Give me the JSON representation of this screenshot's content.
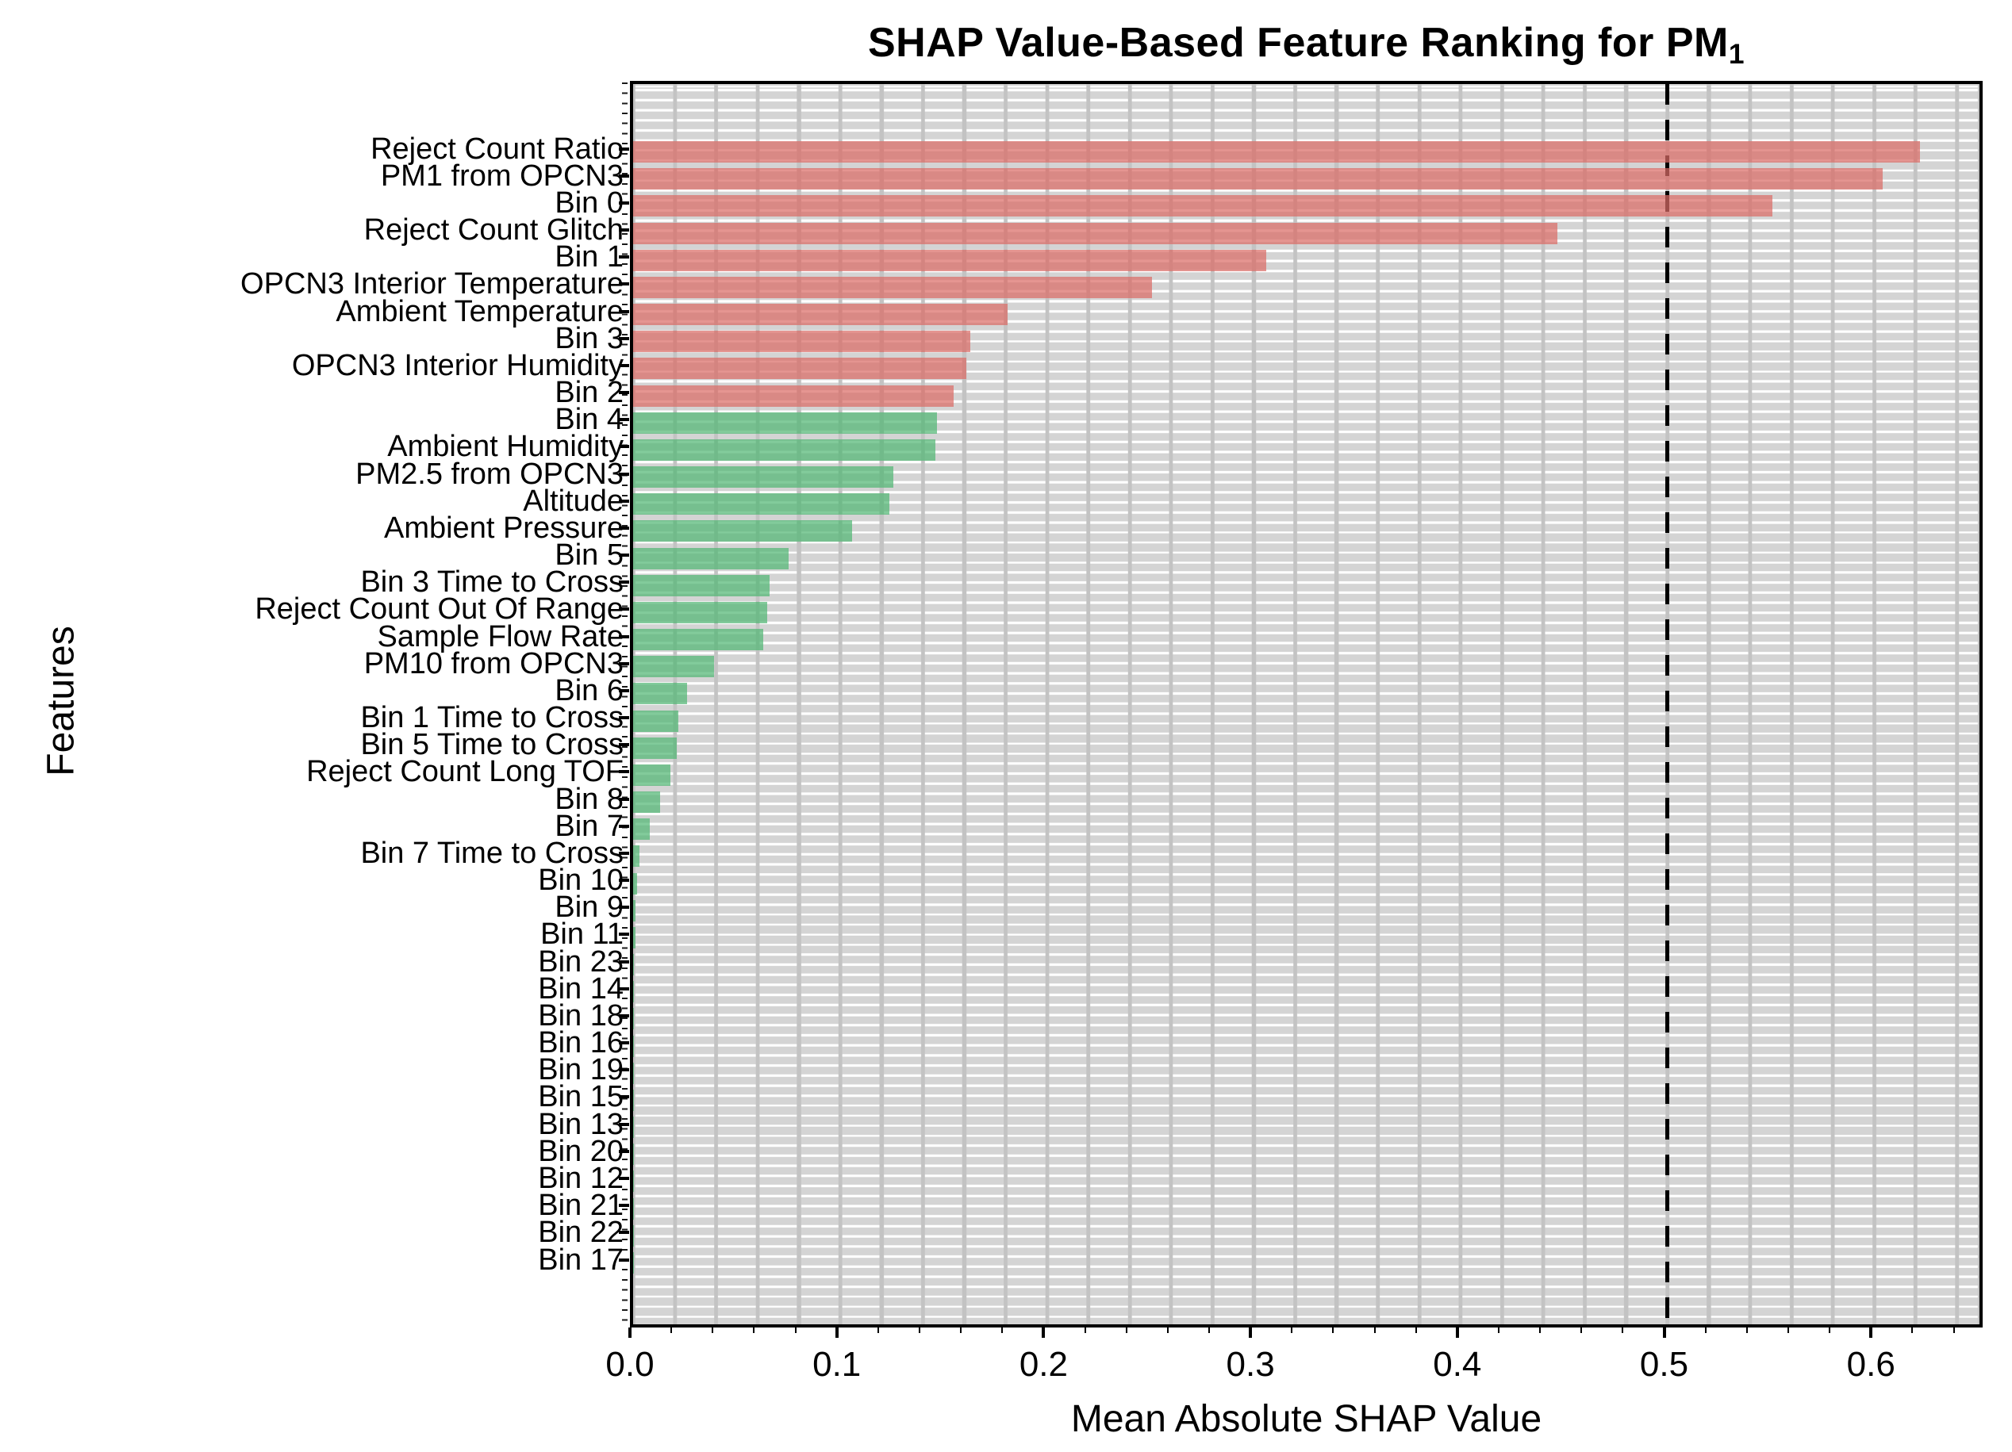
{
  "title": {
    "text_prefix": "SHAP Value-Based Feature Ranking for PM",
    "subscript": "1"
  },
  "colors": {
    "figure_background": "#ffffff",
    "plot_background": "#d4d4d4",
    "grid_vertical": "#c3c3c3",
    "grid_horizontal": "#ffffff",
    "bar_high": "rgba(219,108,103,0.72)",
    "bar_low": "rgba(82,183,117,0.72)",
    "threshold": "#000000",
    "text": "#000000"
  },
  "chart_data": {
    "type": "bar",
    "orientation": "horizontal",
    "title": "SHAP Value-Based Feature Ranking for PM1",
    "xlabel": "Mean Absolute SHAP Value",
    "ylabel": "Features",
    "xlim": [
      0,
      0.654
    ],
    "x_major_ticks": [
      0.0,
      0.1,
      0.2,
      0.3,
      0.4,
      0.5,
      0.6
    ],
    "x_major_tick_labels": [
      "0.0",
      "0.1",
      "0.2",
      "0.3",
      "0.4",
      "0.5",
      "0.6"
    ],
    "x_minor_tick_step": 0.02,
    "grid": {
      "vertical_step": 0.02,
      "horizontal_lines": true,
      "grid_on": true
    },
    "threshold_line": {
      "x": 0.5,
      "style": "dashed",
      "color": "#000000"
    },
    "legend": "none",
    "series": [
      {
        "label": "Reject Count Ratio",
        "value": 0.622,
        "group": "high"
      },
      {
        "label": "PM1 from OPCN3",
        "value": 0.604,
        "group": "high"
      },
      {
        "label": "Bin 0",
        "value": 0.551,
        "group": "high"
      },
      {
        "label": "Reject Count Glitch",
        "value": 0.447,
        "group": "high"
      },
      {
        "label": "Bin 1",
        "value": 0.306,
        "group": "high"
      },
      {
        "label": "OPCN3 Interior Temperature",
        "value": 0.251,
        "group": "high"
      },
      {
        "label": "Ambient Temperature",
        "value": 0.181,
        "group": "high"
      },
      {
        "label": "Bin 3",
        "value": 0.163,
        "group": "high"
      },
      {
        "label": "OPCN3 Interior Humidity",
        "value": 0.161,
        "group": "high"
      },
      {
        "label": "Bin 2",
        "value": 0.155,
        "group": "high"
      },
      {
        "label": "Bin 4",
        "value": 0.147,
        "group": "low"
      },
      {
        "label": "Ambient Humidity",
        "value": 0.146,
        "group": "low"
      },
      {
        "label": "PM2.5 from OPCN3",
        "value": 0.126,
        "group": "low"
      },
      {
        "label": "Altitude",
        "value": 0.124,
        "group": "low"
      },
      {
        "label": "Ambient Pressure",
        "value": 0.106,
        "group": "low"
      },
      {
        "label": "Bin 5",
        "value": 0.075,
        "group": "low"
      },
      {
        "label": "Bin 3 Time to Cross",
        "value": 0.066,
        "group": "low"
      },
      {
        "label": "Reject Count Out Of Range",
        "value": 0.065,
        "group": "low"
      },
      {
        "label": "Sample Flow Rate",
        "value": 0.063,
        "group": "low"
      },
      {
        "label": "PM10 from OPCN3",
        "value": 0.039,
        "group": "low"
      },
      {
        "label": "Bin 6",
        "value": 0.026,
        "group": "low"
      },
      {
        "label": "Bin 1 Time to Cross",
        "value": 0.022,
        "group": "low"
      },
      {
        "label": "Bin 5 Time to Cross",
        "value": 0.021,
        "group": "low"
      },
      {
        "label": "Reject Count Long TOF",
        "value": 0.018,
        "group": "low"
      },
      {
        "label": "Bin 8",
        "value": 0.013,
        "group": "low"
      },
      {
        "label": "Bin 7",
        "value": 0.008,
        "group": "low"
      },
      {
        "label": "Bin 7 Time to Cross",
        "value": 0.003,
        "group": "low"
      },
      {
        "label": "Bin 10",
        "value": 0.002,
        "group": "low"
      },
      {
        "label": "Bin 9",
        "value": 0.001,
        "group": "low"
      },
      {
        "label": "Bin 11",
        "value": 0.001,
        "group": "low"
      },
      {
        "label": "Bin 23",
        "value": 0.0005,
        "group": "low"
      },
      {
        "label": "Bin 14",
        "value": 0.0004,
        "group": "low"
      },
      {
        "label": "Bin 18",
        "value": 0.0003,
        "group": "low"
      },
      {
        "label": "Bin 16",
        "value": 0.0003,
        "group": "low"
      },
      {
        "label": "Bin 19",
        "value": 0.0002,
        "group": "low"
      },
      {
        "label": "Bin 15",
        "value": 0.0002,
        "group": "low"
      },
      {
        "label": "Bin 13",
        "value": 0.0002,
        "group": "low"
      },
      {
        "label": "Bin 20",
        "value": 0.0001,
        "group": "low"
      },
      {
        "label": "Bin 12",
        "value": 0.0001,
        "group": "low"
      },
      {
        "label": "Bin 21",
        "value": 0.0001,
        "group": "low"
      },
      {
        "label": "Bin 22",
        "value": 0.0001,
        "group": "low"
      },
      {
        "label": "Bin 17",
        "value": 0.0001,
        "group": "low"
      }
    ]
  }
}
